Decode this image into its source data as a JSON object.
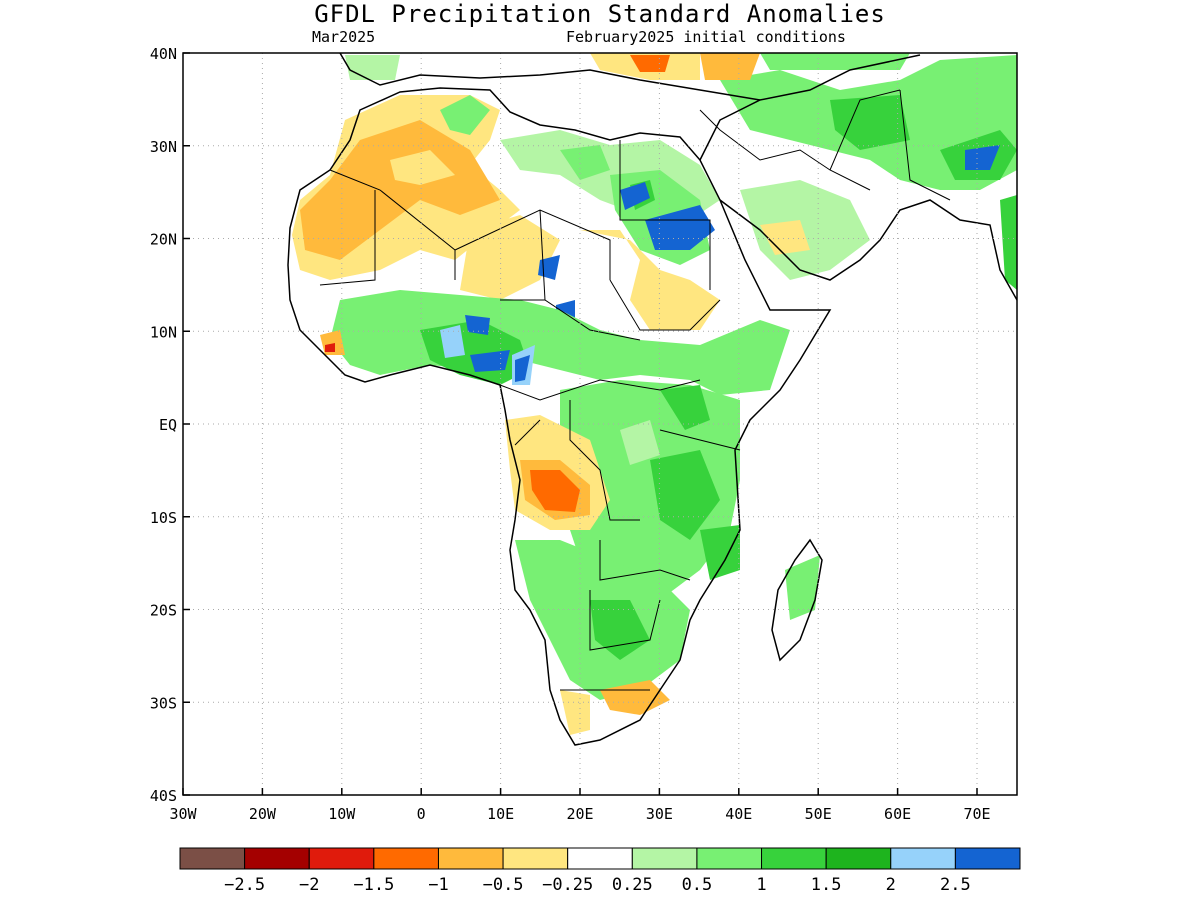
{
  "title": "GFDL Precipitation Standard Anomalies",
  "subtitle_left": "Mar2025",
  "subtitle_right": "February2025 initial conditions",
  "y_ticks": [
    "40N",
    "30N",
    "20N",
    "10N",
    "EQ",
    "10S",
    "20S",
    "30S",
    "40S"
  ],
  "x_ticks": [
    "30W",
    "20W",
    "10W",
    "0",
    "10E",
    "20E",
    "30E",
    "40E",
    "50E",
    "60E",
    "70E"
  ],
  "colorbar": {
    "colors": [
      "#7b4f46",
      "#a40000",
      "#e01b0c",
      "#ff6a00",
      "#ffba3c",
      "#ffe680",
      "#ffffff",
      "#b4f5a5",
      "#78f073",
      "#37d23c",
      "#1eb41e",
      "#96d2fa",
      "#1464d2"
    ],
    "labels": [
      "-2.5",
      "-2",
      "-1.5",
      "-1",
      "-0.5",
      "-0.25",
      "0.25",
      "0.5",
      "1",
      "1.5",
      "2",
      "2.5"
    ]
  }
}
